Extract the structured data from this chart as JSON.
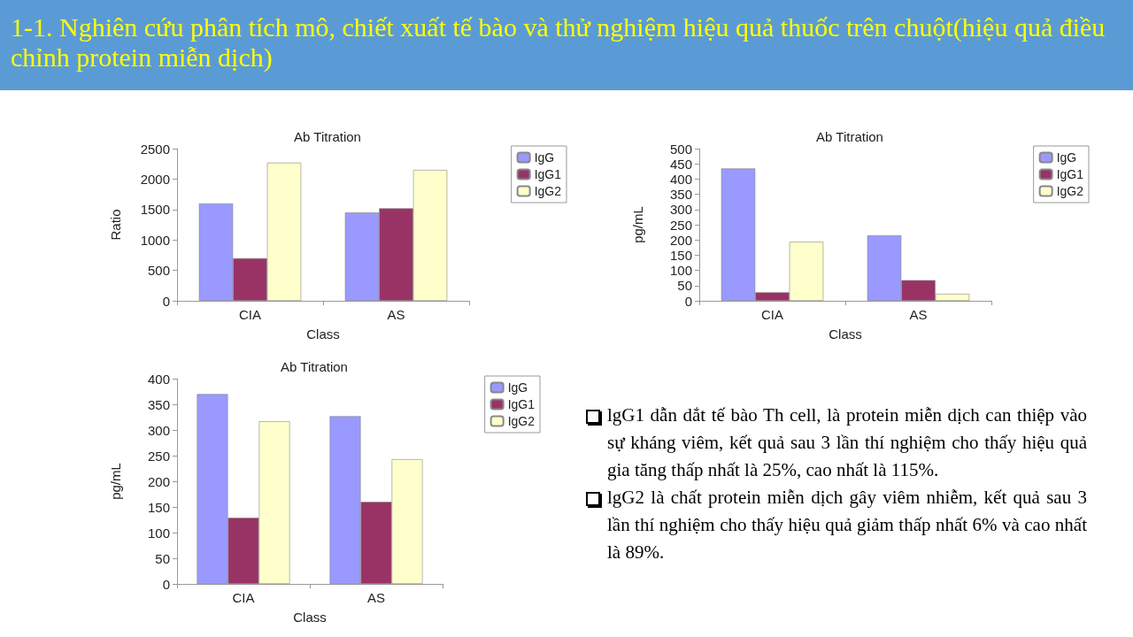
{
  "chart_data": [
    {
      "type": "other",
      "title": "1-1. Nghiên cứu phân tích mô, chiết xuất tế bào và thử nghiệm hiệu quả thuốc trên chuột(hiệu quả điều chỉnh protein miễn dịch)"
    },
    {
      "type": "bar",
      "title": "Ab Titration",
      "xlabel": "Class",
      "ylabel": "Ratio",
      "categories": [
        "CIA",
        "AS"
      ],
      "series": [
        {
          "name": "IgG",
          "color": "#9999ff",
          "values": [
            1600,
            1450
          ]
        },
        {
          "name": "IgG1",
          "color": "#993366",
          "values": [
            700,
            1520
          ]
        },
        {
          "name": "IgG2",
          "color": "#ffffcc",
          "values": [
            2270,
            2150
          ]
        }
      ],
      "ylim": [
        0,
        2500
      ],
      "yticks": [
        0,
        500,
        1000,
        1500,
        2000,
        2500
      ],
      "grid": false,
      "legend": "top right"
    },
    {
      "type": "bar",
      "title": "Ab Titration",
      "xlabel": "Class",
      "ylabel": "pg/mL",
      "categories": [
        "CIA",
        "AS"
      ],
      "series": [
        {
          "name": "IgG",
          "color": "#9999ff",
          "values": [
            435,
            215
          ]
        },
        {
          "name": "IgG1",
          "color": "#993366",
          "values": [
            28,
            68
          ]
        },
        {
          "name": "IgG2",
          "color": "#ffffcc",
          "values": [
            194,
            23
          ]
        }
      ],
      "ylim": [
        0,
        500
      ],
      "yticks": [
        0,
        50,
        100,
        150,
        200,
        250,
        300,
        350,
        400,
        450,
        500
      ],
      "grid": false,
      "legend": "top right"
    },
    {
      "type": "bar",
      "title": "Ab Titration",
      "xlabel": "Class",
      "ylabel": "pg/mL",
      "categories": [
        "CIA",
        "AS"
      ],
      "series": [
        {
          "name": "IgG",
          "color": "#9999ff",
          "values": [
            370,
            327
          ]
        },
        {
          "name": "IgG1",
          "color": "#993366",
          "values": [
            129,
            160
          ]
        },
        {
          "name": "IgG2",
          "color": "#ffffcc",
          "values": [
            317,
            243
          ]
        }
      ],
      "ylim": [
        0,
        400
      ],
      "yticks": [
        0,
        50,
        100,
        150,
        200,
        250,
        300,
        350,
        400
      ],
      "grid": false,
      "legend": "top right"
    },
    {
      "type": "other",
      "annotations": [
        "lgG1 dẫn dắt tế bào Th cell, là protein miễn dịch can thiệp vào sự kháng viêm, kết quả sau 3 lần thí nghiệm cho thấy hiệu quả gia tăng thấp nhất là 25%, cao nhất là 115%.",
        "lgG2 là chất protein miễn dịch gây viêm nhiễm, kết quả sau 3 lần thí nghiệm cho thấy hiệu quả giảm thấp nhất 6% và cao nhất là 89%."
      ]
    }
  ]
}
